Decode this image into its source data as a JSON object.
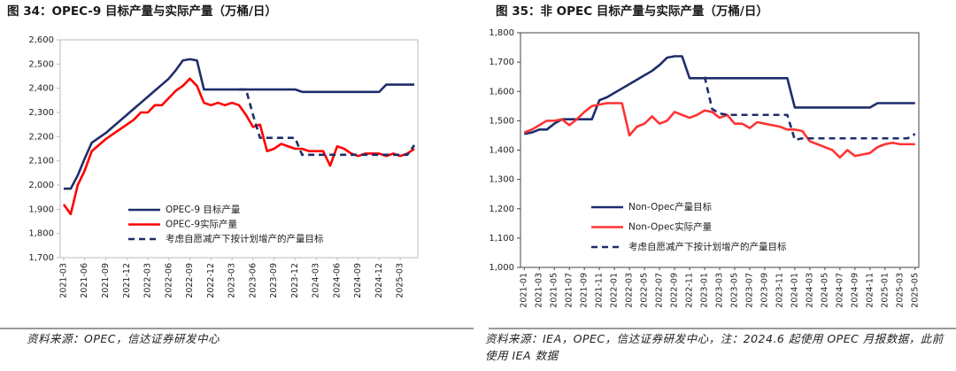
{
  "chart_data": [
    {
      "type": "line",
      "title": "图 34：OPEC-9 目标产量与实际产量（万桶/日）",
      "legend": "lower left",
      "categories": [
        "2021-03",
        null,
        null,
        "2021-06",
        null,
        null,
        "2021-09",
        null,
        null,
        "2021-12",
        null,
        null,
        "2022-03",
        null,
        null,
        "2022-06",
        null,
        null,
        "2022-09",
        null,
        null,
        "2022-12",
        null,
        null,
        "2023-03",
        null,
        null,
        "2023-06",
        null,
        null,
        "2023-09",
        null,
        null,
        "2023-12",
        null,
        null,
        "2024-03",
        null,
        null,
        "2024-06",
        null,
        null,
        "2024-09",
        null,
        null,
        "2024-12",
        null,
        null,
        "2025-03",
        null,
        null
      ],
      "ylim": [
        1700,
        2600
      ],
      "yticks": [
        {
          "value": 1700,
          "label": "1,700"
        },
        {
          "value": 1800,
          "label": "1,800"
        },
        {
          "value": 1900,
          "label": "1,900"
        },
        {
          "value": 2000,
          "label": "2,000"
        },
        {
          "value": 2100,
          "label": "2,100"
        },
        {
          "value": 2200,
          "label": "2,200"
        },
        {
          "value": 2300,
          "label": "2,300"
        },
        {
          "value": 2400,
          "label": "2,400"
        },
        {
          "value": 2500,
          "label": "2,500"
        },
        {
          "value": 2600,
          "label": "2,600"
        }
      ],
      "series": [
        {
          "name": "OPEC-9 目标产量",
          "color": "#1f2d6b",
          "dashed": false,
          "values": [
            1985,
            1985,
            2040,
            2110,
            2175,
            2195,
            2215,
            2240,
            2265,
            2290,
            2315,
            2340,
            2365,
            2390,
            2415,
            2440,
            2475,
            2515,
            2520,
            2515,
            2395,
            2395,
            2395,
            2395,
            2395,
            2395,
            2395,
            2395,
            2395,
            2395,
            2395,
            2395,
            2395,
            2395,
            2385,
            2385,
            2385,
            2385,
            2385,
            2385,
            2385,
            2385,
            2385,
            2385,
            2385,
            2385,
            2415,
            2415,
            2415,
            2415,
            2415
          ]
        },
        {
          "name": "OPEC-9实际产量",
          "color": "#ff0000",
          "dashed": false,
          "values": [
            1920,
            1880,
            2000,
            2060,
            2140,
            2165,
            2190,
            2210,
            2230,
            2250,
            2270,
            2300,
            2300,
            2330,
            2330,
            2360,
            2390,
            2410,
            2440,
            2410,
            2340,
            2330,
            2340,
            2330,
            2340,
            2330,
            2290,
            2240,
            2250,
            2140,
            2150,
            2170,
            2160,
            2150,
            2150,
            2140,
            2140,
            2140,
            2080,
            2160,
            2150,
            2130,
            2120,
            2130,
            2130,
            2130,
            2120,
            2130,
            2120,
            2130,
            2150
          ]
        },
        {
          "name": "考虑自愿减产下按计划增产的产量目标",
          "color": "#1f2d6b",
          "dashed": true,
          "values": [
            null,
            null,
            null,
            null,
            null,
            null,
            null,
            null,
            null,
            null,
            null,
            null,
            null,
            null,
            null,
            null,
            null,
            null,
            null,
            null,
            null,
            null,
            null,
            null,
            null,
            2395,
            2395,
            2290,
            2195,
            2195,
            2195,
            2195,
            2195,
            2195,
            2125,
            2125,
            2125,
            2125,
            2125,
            2125,
            2125,
            2125,
            2125,
            2125,
            2125,
            2125,
            2125,
            2125,
            2125,
            2125,
            2165
          ]
        }
      ]
    },
    {
      "type": "line",
      "title": "图 35：非 OPEC 目标产量与实际产量（万桶/日）",
      "legend": "lower left",
      "categories": [
        "2021-01",
        null,
        "2021-03",
        null,
        "2021-05",
        null,
        "2021-07",
        null,
        "2021-09",
        null,
        "2021-11",
        null,
        "2022-01",
        null,
        "2022-03",
        null,
        "2022-05",
        null,
        "2022-07",
        null,
        "2022-09",
        null,
        "2022-11",
        null,
        "2023-01",
        null,
        "2023-03",
        null,
        "2023-05",
        null,
        "2023-07",
        null,
        "2023-09",
        null,
        "2023-11",
        null,
        "2024-01",
        null,
        "2024-03",
        null,
        "2024-05",
        null,
        "2024-07",
        null,
        "2024-09",
        null,
        "2024-11",
        null,
        "2025-01",
        null,
        "2025-03",
        null,
        "2025-05"
      ],
      "ylim": [
        1000,
        1800
      ],
      "yticks": [
        {
          "value": 1000,
          "label": "1,000"
        },
        {
          "value": 1100,
          "label": "1,100"
        },
        {
          "value": 1200,
          "label": "1,200"
        },
        {
          "value": 1300,
          "label": "1,300"
        },
        {
          "value": 1400,
          "label": "1,400"
        },
        {
          "value": 1500,
          "label": "1,500"
        },
        {
          "value": 1600,
          "label": "1,600"
        },
        {
          "value": 1700,
          "label": "1,700"
        },
        {
          "value": 1800,
          "label": "1,800"
        }
      ],
      "series": [
        {
          "name": "Non-Opec产量目标",
          "color": "#1f2d6b",
          "dashed": false,
          "values": [
            1455,
            1460,
            1470,
            1470,
            1490,
            1505,
            1505,
            1505,
            1505,
            1505,
            1570,
            1580,
            1595,
            1610,
            1625,
            1640,
            1655,
            1670,
            1690,
            1715,
            1720,
            1720,
            1645,
            1645,
            1645,
            1645,
            1645,
            1645,
            1645,
            1645,
            1645,
            1645,
            1645,
            1645,
            1645,
            1645,
            1545,
            1545,
            1545,
            1545,
            1545,
            1545,
            1545,
            1545,
            1545,
            1545,
            1545,
            1560,
            1560,
            1560,
            1560,
            1560,
            1560
          ]
        },
        {
          "name": "Non-Opec实际产量",
          "color": "#ff3333",
          "dashed": false,
          "values": [
            1460,
            1470,
            1485,
            1500,
            1500,
            1505,
            1485,
            1505,
            1530,
            1550,
            1555,
            1560,
            1560,
            1560,
            1450,
            1480,
            1490,
            1515,
            1490,
            1500,
            1530,
            1520,
            1510,
            1520,
            1535,
            1530,
            1510,
            1520,
            1490,
            1490,
            1475,
            1495,
            1490,
            1485,
            1480,
            1470,
            1470,
            1465,
            1430,
            1420,
            1410,
            1400,
            1375,
            1400,
            1380,
            1385,
            1390,
            1410,
            1420,
            1425,
            1420,
            1420,
            1420
          ]
        },
        {
          "name": "考虑自愿减产下按计划增产的产量目标",
          "color": "#1f2d6b",
          "dashed": true,
          "values": [
            null,
            null,
            null,
            null,
            null,
            null,
            null,
            null,
            null,
            null,
            null,
            null,
            null,
            null,
            null,
            null,
            null,
            null,
            null,
            null,
            null,
            null,
            null,
            null,
            1650,
            1540,
            1525,
            1520,
            1520,
            1520,
            1520,
            1520,
            1520,
            1520,
            1520,
            1520,
            1435,
            1440,
            1440,
            1440,
            1440,
            1440,
            1440,
            1440,
            1440,
            1440,
            1440,
            1440,
            1440,
            1440,
            1440,
            1440,
            1455
          ]
        }
      ]
    }
  ],
  "notes": [
    "资料来源：OPEC，信达证券研发中心",
    "资料来源：IEA，OPEC，信达证券研发中心，注：2024.6 起使用 OPEC 月报数据，此前使用 IEA 数据"
  ]
}
